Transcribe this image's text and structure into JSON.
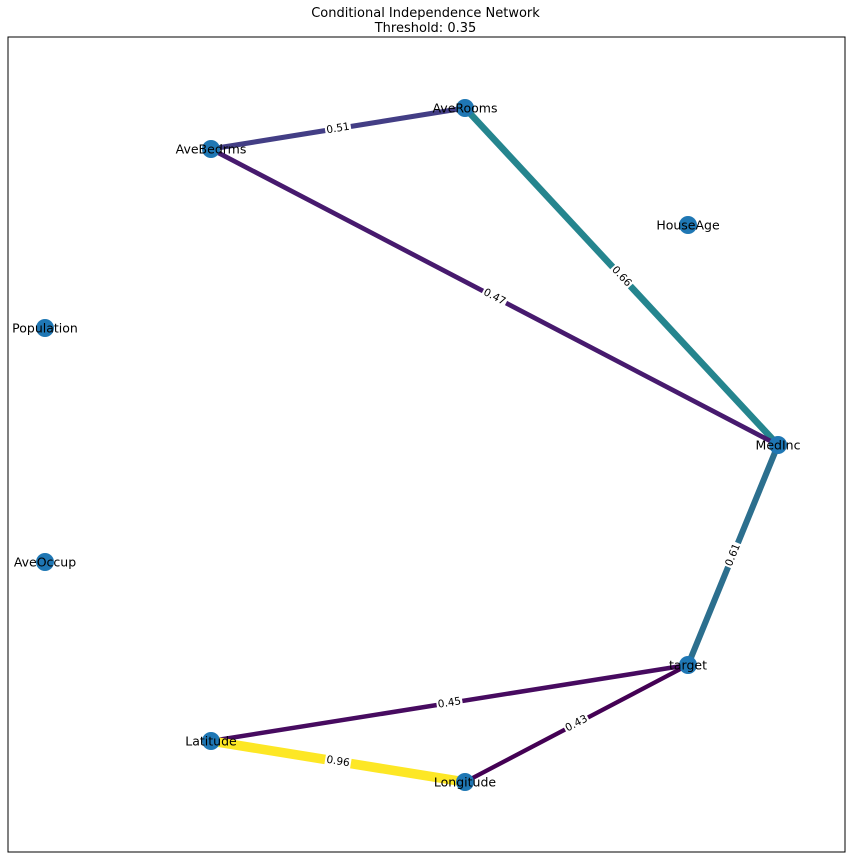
{
  "title": "Conditional Independence Network",
  "subtitle": "Threshold: 0.35",
  "node_color": "#1f77b4",
  "nodes": [
    "MedInc",
    "HouseAge",
    "AveRooms",
    "AveBedrms",
    "Population",
    "AveOccup",
    "Latitude",
    "Longitude",
    "target"
  ],
  "edges": [
    {
      "source": "AveBedrms",
      "target": "AveRooms",
      "weight": "0.51",
      "color": "#433e85"
    },
    {
      "source": "AveRooms",
      "target": "MedInc",
      "weight": "0.66",
      "color": "#25858e"
    },
    {
      "source": "AveBedrms",
      "target": "MedInc",
      "weight": "0.47",
      "color": "#471a6e"
    },
    {
      "source": "MedInc",
      "target": "target",
      "weight": "0.61",
      "color": "#2c6f8e"
    },
    {
      "source": "Latitude",
      "target": "target",
      "weight": "0.45",
      "color": "#470b60"
    },
    {
      "source": "Longitude",
      "target": "target",
      "weight": "0.43",
      "color": "#440154"
    },
    {
      "source": "Latitude",
      "target": "Longitude",
      "weight": "0.96",
      "color": "#fde725"
    }
  ]
}
